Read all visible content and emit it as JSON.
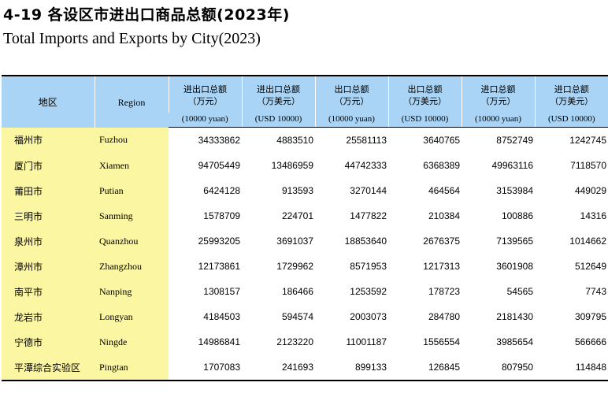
{
  "title_cn": "4-19  各设区市进出口商品总额(2023年)",
  "title_en": "Total Imports and Exports by City(2023)",
  "header": {
    "region_cn": "地区",
    "region_en": "Region",
    "columns": [
      {
        "l1": "进出口总额",
        "l2": "（万元）",
        "unit": "(10000 yuan)"
      },
      {
        "l1": "进出口总额",
        "l2": "（万美元）",
        "unit": "(USD 10000)"
      },
      {
        "l1": "出口总额",
        "l2": "（万元）",
        "unit": "(10000 yuan)"
      },
      {
        "l1": "出口总额",
        "l2": "（万美元）",
        "unit": "(USD 10000)"
      },
      {
        "l1": "进口总额",
        "l2": "（万元）",
        "unit": "(10000 yuan)"
      },
      {
        "l1": "进口总额",
        "l2": "（万美元）",
        "unit": "(USD 10000)"
      }
    ]
  },
  "rows": [
    {
      "cn": "福州市",
      "en": "Fuzhou",
      "v": [
        "34333862",
        "4883510",
        "25581113",
        "3640765",
        "8752749",
        "1242745"
      ]
    },
    {
      "cn": "厦门市",
      "en": "Xiamen",
      "v": [
        "94705449",
        "13486959",
        "44742333",
        "6368389",
        "49963116",
        "7118570"
      ]
    },
    {
      "cn": "莆田市",
      "en": "Putian",
      "v": [
        "6424128",
        "913593",
        "3270144",
        "464564",
        "3153984",
        "449029"
      ]
    },
    {
      "cn": "三明市",
      "en": "Sanming",
      "v": [
        "1578709",
        "224701",
        "1477822",
        "210384",
        "100886",
        "14316"
      ]
    },
    {
      "cn": "泉州市",
      "en": "Quanzhou",
      "v": [
        "25993205",
        "3691037",
        "18853640",
        "2676375",
        "7139565",
        "1014662"
      ]
    },
    {
      "cn": "漳州市",
      "en": "Zhangzhou",
      "v": [
        "12173861",
        "1729962",
        "8571953",
        "1217313",
        "3601908",
        "512649"
      ]
    },
    {
      "cn": "南平市",
      "en": "Nanping",
      "v": [
        "1308157",
        "186466",
        "1253592",
        "178723",
        "54565",
        "7743"
      ]
    },
    {
      "cn": "龙岩市",
      "en": "Longyan",
      "v": [
        "4184503",
        "594574",
        "2003073",
        "284780",
        "2181430",
        "309795"
      ]
    },
    {
      "cn": "宁德市",
      "en": "Ningde",
      "v": [
        "14986841",
        "2123220",
        "11001187",
        "1556554",
        "3985654",
        "566666"
      ]
    },
    {
      "cn": "平潭综合实验区",
      "en": "Pingtan",
      "v": [
        "1707083",
        "241693",
        "899133",
        "126845",
        "807950",
        "114848"
      ]
    }
  ]
}
